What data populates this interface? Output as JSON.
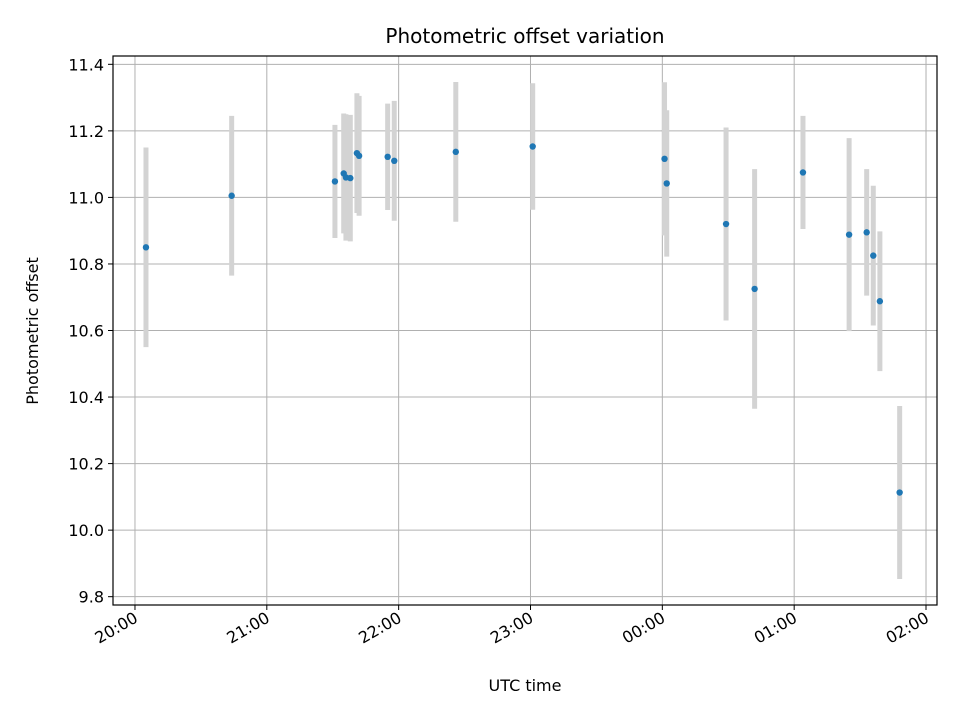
{
  "chart_data": {
    "type": "scatter",
    "title": "Photometric offset variation",
    "xlabel": "UTC time",
    "ylabel": "Photometric offset",
    "x_is_time": true,
    "x_range": [
      "20:00",
      "26:00"
    ],
    "xlim": [
      "19:50",
      "26:05"
    ],
    "ylim": [
      9.775,
      11.425
    ],
    "y_ticks": [
      9.8,
      10.0,
      10.2,
      10.4,
      10.6,
      10.8,
      11.0,
      11.2,
      11.4
    ],
    "y_tick_labels": [
      "9.8",
      "10.0",
      "10.2",
      "10.4",
      "10.6",
      "10.8",
      "11.0",
      "11.2",
      "11.4"
    ],
    "x_ticks": [
      "20:00",
      "21:00",
      "22:00",
      "23:00",
      "24:00",
      "25:00",
      "26:00"
    ],
    "x_tick_labels": [
      "20:00",
      "21:00",
      "22:00",
      "23:00",
      "00:00",
      "01:00",
      "02:00"
    ],
    "grid": true,
    "marker_color": "#1f77b4",
    "errorbar_color": "#d3d3d3",
    "points": [
      {
        "t": "20:05",
        "y": 10.85,
        "err": 0.3
      },
      {
        "t": "20:44",
        "y": 11.005,
        "err": 0.24
      },
      {
        "t": "21:31",
        "y": 11.048,
        "err": 0.17
      },
      {
        "t": "21:35",
        "y": 11.072,
        "err": 0.18
      },
      {
        "t": "21:36",
        "y": 11.06,
        "err": 0.19
      },
      {
        "t": "21:38",
        "y": 11.058,
        "err": 0.19
      },
      {
        "t": "21:41",
        "y": 11.133,
        "err": 0.18
      },
      {
        "t": "21:42",
        "y": 11.125,
        "err": 0.18
      },
      {
        "t": "21:55",
        "y": 11.122,
        "err": 0.16
      },
      {
        "t": "21:58",
        "y": 11.11,
        "err": 0.18
      },
      {
        "t": "22:26",
        "y": 11.137,
        "err": 0.21
      },
      {
        "t": "23:01",
        "y": 11.153,
        "err": 0.19
      },
      {
        "t": "24:01",
        "y": 11.116,
        "err": 0.23
      },
      {
        "t": "24:02",
        "y": 11.042,
        "err": 0.22
      },
      {
        "t": "24:29",
        "y": 10.92,
        "err": 0.29
      },
      {
        "t": "24:42",
        "y": 10.725,
        "err": 0.36
      },
      {
        "t": "25:04",
        "y": 11.075,
        "err": 0.17
      },
      {
        "t": "25:25",
        "y": 10.888,
        "err": 0.29
      },
      {
        "t": "25:33",
        "y": 10.895,
        "err": 0.19
      },
      {
        "t": "25:36",
        "y": 10.825,
        "err": 0.21
      },
      {
        "t": "25:39",
        "y": 10.688,
        "err": 0.21
      },
      {
        "t": "25:48",
        "y": 10.113,
        "err": 0.26
      }
    ]
  }
}
